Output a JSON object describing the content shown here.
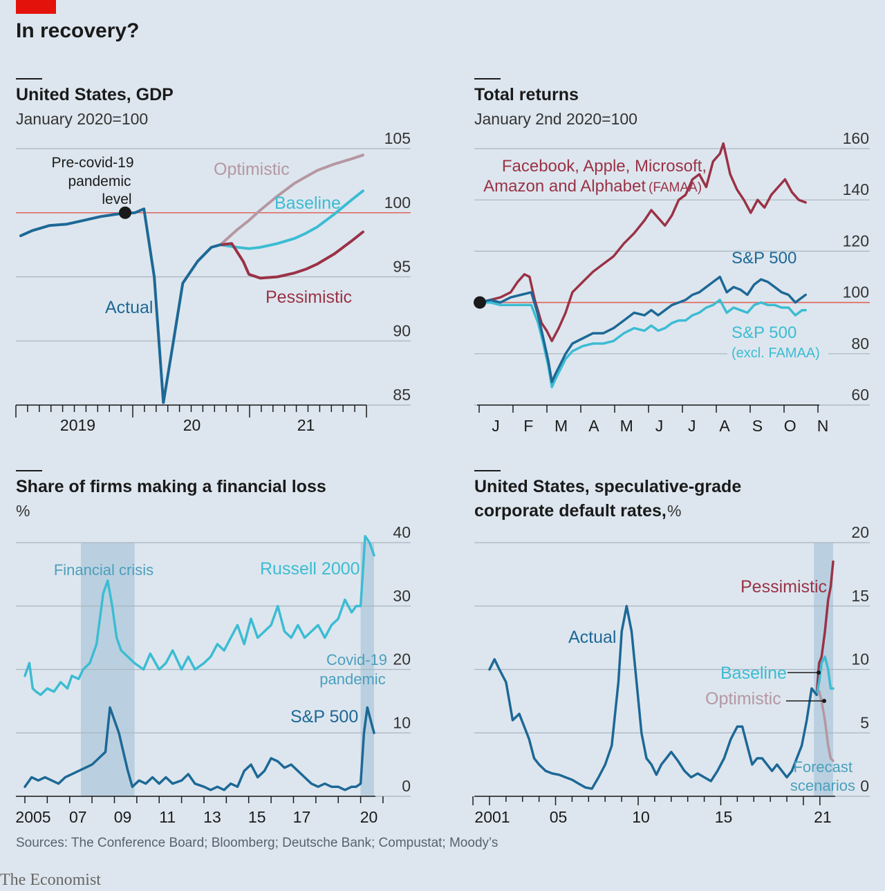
{
  "header": {
    "title": "In recovery?"
  },
  "footer": {
    "sources": "Sources: The Conference Board; Bloomberg; Deutsche Bank; Compustat; Moody’s",
    "brand": "The Economist"
  },
  "colors": {
    "background": "#dde6ee",
    "actual": "#1d6896",
    "optimistic": "#b597a3",
    "baseline": "#3cbcd3",
    "pessimistic": "#9a3246",
    "famaa": "#9a3246",
    "sp500": "#1d6896",
    "sp500_excl": "#3cbcd3",
    "russell": "#3cbcd3",
    "reference_line": "#e0645a",
    "shade": "#b2cbdc",
    "grid": "#a9b4bf",
    "brand_red": "#e3120b"
  },
  "chart_data": [
    {
      "type": "line",
      "title": "United States, GDP",
      "subtitle": "January 2020=100",
      "y_ticks": [
        85,
        90,
        95,
        100,
        105
      ],
      "ylim": [
        85,
        105
      ],
      "x_tick_labels": [
        {
          "label": "2019",
          "x": 2019.5
        },
        {
          "label": "20",
          "x": 2020.5
        },
        {
          "label": "21",
          "x": 2021.5
        }
      ],
      "reference_value": 100,
      "annotations": {
        "pre_covid_line1": "Pre-covid-19",
        "pre_covid_line2": "pandemic",
        "pre_covid_line3": "level"
      },
      "series": [
        {
          "name": "Actual",
          "x": [
            2019.0,
            2019.1,
            2019.25,
            2019.4,
            2019.55,
            2019.7,
            2019.85,
            2020.0,
            2020.08,
            2020.17,
            2020.25,
            2020.33,
            2020.42,
            2020.55,
            2020.67,
            2020.75
          ],
          "y": [
            98.2,
            98.6,
            99.0,
            99.1,
            99.4,
            99.7,
            99.9,
            100.0,
            100.3,
            95.0,
            85.2,
            89.5,
            94.5,
            96.2,
            97.3,
            97.5
          ]
        },
        {
          "name": "Optimistic",
          "x": [
            2020.75,
            2020.9,
            2021.0,
            2021.1,
            2021.25,
            2021.4,
            2021.5,
            2021.6,
            2021.75,
            2021.9,
            2022.0
          ],
          "y": [
            97.5,
            98.7,
            99.4,
            100.2,
            101.3,
            102.3,
            102.8,
            103.3,
            103.8,
            104.2,
            104.5
          ]
        },
        {
          "name": "Baseline",
          "x": [
            2020.75,
            2020.9,
            2021.0,
            2021.1,
            2021.25,
            2021.4,
            2021.5,
            2021.6,
            2021.75,
            2021.9,
            2022.0
          ],
          "y": [
            97.5,
            97.3,
            97.2,
            97.3,
            97.6,
            98.0,
            98.4,
            98.9,
            99.9,
            101.0,
            101.7
          ]
        },
        {
          "name": "Pessimistic",
          "x": [
            2020.75,
            2020.85,
            2020.95,
            2021.0,
            2021.1,
            2021.25,
            2021.4,
            2021.5,
            2021.6,
            2021.75,
            2021.9,
            2022.0
          ],
          "y": [
            97.5,
            97.6,
            96.2,
            95.2,
            94.9,
            95.0,
            95.3,
            95.6,
            96.0,
            96.8,
            97.8,
            98.5
          ]
        }
      ]
    },
    {
      "type": "line",
      "title": "Total returns",
      "subtitle": "January 2nd 2020=100",
      "y_ticks": [
        60,
        80,
        100,
        120,
        140,
        160
      ],
      "ylim": [
        60,
        160
      ],
      "x_tick_labels": [
        "J",
        "F",
        "M",
        "A",
        "M",
        "J",
        "J",
        "A",
        "S",
        "O",
        "N"
      ],
      "reference_value": 100,
      "labels": {
        "famaa_line1": "Facebook, Apple, Microsoft,",
        "famaa_line2": "Amazon and Alphabet",
        "famaa_abbr": "(FAMAA)",
        "sp500": "S&P 500",
        "sp500_excl_line1": "S&P 500",
        "sp500_excl_line2": "(excl. FAMAA)"
      },
      "series": [
        {
          "name": "FAMAA",
          "x": [
            0,
            0.3,
            0.6,
            0.9,
            1.1,
            1.3,
            1.45,
            1.6,
            1.8,
            1.95,
            2.1,
            2.3,
            2.5,
            2.7,
            3.0,
            3.3,
            3.6,
            3.9,
            4.2,
            4.5,
            4.8,
            5.0,
            5.2,
            5.4,
            5.6,
            5.8,
            6.0,
            6.2,
            6.4,
            6.6,
            6.8,
            7.0,
            7.1,
            7.3,
            7.5,
            7.7,
            7.9,
            8.1,
            8.3,
            8.5,
            8.7,
            8.9,
            9.1,
            9.3,
            9.5
          ],
          "y": [
            100,
            101,
            102,
            104,
            108,
            111,
            110,
            101,
            92,
            89,
            85,
            90,
            96,
            104,
            108,
            112,
            115,
            118,
            123,
            127,
            132,
            136,
            133,
            130,
            134,
            140,
            142,
            148,
            150,
            145,
            155,
            158,
            162,
            150,
            144,
            140,
            135,
            140,
            137,
            142,
            145,
            148,
            143,
            140,
            139
          ]
        },
        {
          "name": "S&P 500",
          "x": [
            0,
            0.3,
            0.6,
            0.9,
            1.2,
            1.5,
            1.7,
            1.85,
            2.0,
            2.1,
            2.2,
            2.35,
            2.5,
            2.7,
            3.0,
            3.3,
            3.6,
            3.9,
            4.2,
            4.5,
            4.8,
            5.0,
            5.2,
            5.4,
            5.6,
            5.8,
            6.0,
            6.2,
            6.4,
            6.6,
            6.8,
            7.0,
            7.2,
            7.4,
            7.6,
            7.8,
            8.0,
            8.2,
            8.4,
            8.6,
            8.8,
            9.0,
            9.2,
            9.4,
            9.5
          ],
          "y": [
            100,
            101,
            100,
            102,
            103,
            104,
            95,
            86,
            77,
            69,
            72,
            76,
            80,
            84,
            86,
            88,
            88,
            90,
            93,
            96,
            95,
            97,
            95,
            97,
            99,
            100,
            101,
            103,
            104,
            106,
            108,
            110,
            104,
            106,
            105,
            103,
            107,
            109,
            108,
            106,
            104,
            103,
            100,
            102,
            103
          ]
        },
        {
          "name": "S&P 500 (excl. FAMAA)",
          "x": [
            0,
            0.3,
            0.6,
            0.9,
            1.2,
            1.5,
            1.7,
            1.85,
            2.0,
            2.1,
            2.2,
            2.35,
            2.5,
            2.7,
            3.0,
            3.3,
            3.6,
            3.9,
            4.2,
            4.5,
            4.8,
            5.0,
            5.2,
            5.4,
            5.6,
            5.8,
            6.0,
            6.2,
            6.4,
            6.6,
            6.8,
            7.0,
            7.2,
            7.4,
            7.6,
            7.8,
            8.0,
            8.2,
            8.4,
            8.6,
            8.8,
            9.0,
            9.2,
            9.4,
            9.5
          ],
          "y": [
            100,
            100,
            99,
            99,
            99,
            99,
            92,
            84,
            75,
            67,
            70,
            74,
            78,
            81,
            83,
            84,
            84,
            85,
            88,
            90,
            89,
            91,
            89,
            90,
            92,
            93,
            93,
            95,
            96,
            98,
            99,
            101,
            96,
            98,
            97,
            96,
            99,
            100,
            99,
            99,
            98,
            98,
            95,
            97,
            97
          ]
        }
      ]
    },
    {
      "type": "line",
      "title": "Share of firms making a financial loss",
      "subtitle": "%",
      "y_ticks": [
        0,
        10,
        20,
        30,
        40
      ],
      "ylim": [
        0,
        40
      ],
      "x_tick_labels": [
        {
          "label": "2005",
          "x": 2005
        },
        {
          "label": "07",
          "x": 2007
        },
        {
          "label": "09",
          "x": 2009
        },
        {
          "label": "11",
          "x": 2011
        },
        {
          "label": "13",
          "x": 2013
        },
        {
          "label": "15",
          "x": 2015
        },
        {
          "label": "17",
          "x": 2017
        },
        {
          "label": "20",
          "x": 2020
        }
      ],
      "shaded_periods": [
        {
          "label": "Financial crisis",
          "from": 2007.5,
          "to": 2009.9
        },
        {
          "label_line1": "Covid-19",
          "label_line2": "pandemic",
          "from": 2020.0,
          "to": 2020.6
        }
      ],
      "series": [
        {
          "name": "Russell 2000",
          "x": [
            2005.0,
            2005.2,
            2005.35,
            2005.5,
            2005.7,
            2006.0,
            2006.3,
            2006.6,
            2006.9,
            2007.1,
            2007.4,
            2007.6,
            2007.9,
            2008.2,
            2008.5,
            2008.7,
            2008.9,
            2009.1,
            2009.3,
            2009.6,
            2009.9,
            2010.3,
            2010.6,
            2011.0,
            2011.3,
            2011.6,
            2012.0,
            2012.3,
            2012.6,
            2013.0,
            2013.3,
            2013.6,
            2013.9,
            2014.2,
            2014.5,
            2014.8,
            2015.1,
            2015.4,
            2015.7,
            2016.0,
            2016.3,
            2016.6,
            2016.9,
            2017.2,
            2017.5,
            2017.8,
            2018.1,
            2018.4,
            2018.7,
            2019.0,
            2019.3,
            2019.6,
            2019.8,
            2020.0,
            2020.2,
            2020.4,
            2020.5,
            2020.6
          ],
          "y": [
            19,
            21,
            17,
            16.5,
            16,
            17,
            16.5,
            18,
            17,
            19,
            18.5,
            20,
            21,
            24,
            32,
            34,
            30,
            25,
            23,
            22,
            21,
            20,
            22.5,
            20,
            21,
            23,
            20,
            22,
            20,
            21,
            22,
            24,
            23,
            25,
            27,
            24,
            28,
            25,
            26,
            27,
            30,
            26,
            25,
            27,
            25,
            26,
            27,
            25,
            27,
            28,
            31,
            29,
            30,
            30,
            41,
            40,
            39,
            38
          ]
        },
        {
          "name": "S&P 500",
          "x": [
            2005.0,
            2005.3,
            2005.6,
            2005.9,
            2006.2,
            2006.5,
            2006.8,
            2007.1,
            2007.4,
            2007.7,
            2008.0,
            2008.3,
            2008.6,
            2008.8,
            2009.0,
            2009.2,
            2009.4,
            2009.6,
            2009.8,
            2010.1,
            2010.4,
            2010.7,
            2011.0,
            2011.3,
            2011.6,
            2012.0,
            2012.3,
            2012.6,
            2013.0,
            2013.3,
            2013.6,
            2013.9,
            2014.2,
            2014.5,
            2014.8,
            2015.1,
            2015.4,
            2015.7,
            2016.0,
            2016.3,
            2016.6,
            2016.9,
            2017.2,
            2017.5,
            2017.8,
            2018.1,
            2018.4,
            2018.7,
            2019.0,
            2019.3,
            2019.6,
            2019.8,
            2020.0,
            2020.15,
            2020.3,
            2020.45,
            2020.6
          ],
          "y": [
            1.5,
            3,
            2.5,
            3,
            2.5,
            2,
            3,
            3.5,
            4,
            4.5,
            5,
            6,
            7,
            14,
            12,
            10,
            7,
            4,
            1.5,
            2.5,
            2,
            3,
            2,
            3,
            2,
            2.5,
            3.5,
            2,
            1.5,
            1,
            1.5,
            1,
            2,
            1.5,
            4,
            5,
            3,
            4,
            6,
            5.5,
            4.5,
            5,
            4,
            3,
            2,
            1.5,
            2,
            1.5,
            1.5,
            1,
            1.5,
            1.5,
            2,
            10,
            14,
            12,
            10
          ]
        }
      ]
    },
    {
      "type": "line",
      "title_line1": "United States, speculative-grade",
      "title_line2": "corporate default rates,",
      "unit": "%",
      "y_ticks": [
        0,
        5,
        10,
        15,
        20
      ],
      "ylim": [
        0,
        20
      ],
      "x_tick_labels": [
        {
          "label": "2001",
          "x": 2001
        },
        {
          "label": "05",
          "x": 2005
        },
        {
          "label": "10",
          "x": 2010
        },
        {
          "label": "15",
          "x": 2015
        },
        {
          "label": "21",
          "x": 2021
        }
      ],
      "shaded_periods": [
        {
          "label_line1": "Forecast",
          "label_line2": "scenarios",
          "from": 2020.8,
          "to": 2021.8
        }
      ],
      "series": [
        {
          "name": "Actual",
          "x": [
            2001.0,
            2001.3,
            2001.6,
            2002.0,
            2002.4,
            2002.8,
            2003.1,
            2003.4,
            2003.7,
            2004.0,
            2004.4,
            2004.8,
            2005.2,
            2005.6,
            2006.0,
            2006.4,
            2006.8,
            2007.2,
            2007.6,
            2008.0,
            2008.4,
            2008.8,
            2009.0,
            2009.3,
            2009.6,
            2009.9,
            2010.2,
            2010.5,
            2010.8,
            2011.1,
            2011.4,
            2011.7,
            2012.0,
            2012.4,
            2012.8,
            2013.2,
            2013.6,
            2014.0,
            2014.4,
            2014.8,
            2015.2,
            2015.6,
            2016.0,
            2016.3,
            2016.6,
            2016.9,
            2017.2,
            2017.5,
            2017.8,
            2018.1,
            2018.4,
            2018.7,
            2019.0,
            2019.3,
            2019.6,
            2019.9,
            2020.2,
            2020.5,
            2020.8
          ],
          "y": [
            10,
            10.8,
            10,
            9,
            6,
            6.5,
            5.5,
            4.5,
            3,
            2.5,
            2,
            1.8,
            1.7,
            1.5,
            1.3,
            1,
            0.7,
            0.6,
            1.5,
            2.5,
            4,
            9,
            13,
            15,
            13,
            9,
            5,
            3,
            2.5,
            1.7,
            2.5,
            3,
            3.5,
            2.8,
            2,
            1.5,
            1.8,
            1.5,
            1.2,
            2,
            3,
            4.5,
            5.5,
            5.5,
            4,
            2.5,
            3,
            3,
            2.5,
            2,
            2.5,
            2,
            1.5,
            2,
            3,
            4,
            6,
            8.5,
            8
          ]
        },
        {
          "name": "Pessimistic",
          "x": [
            2020.8,
            2020.95,
            2021.1,
            2021.3,
            2021.5,
            2021.65,
            2021.8
          ],
          "y": [
            8,
            10.5,
            11,
            13,
            15.5,
            16.5,
            18.5
          ]
        },
        {
          "name": "Baseline",
          "x": [
            2020.8,
            2020.95,
            2021.1,
            2021.3,
            2021.5,
            2021.65,
            2021.8
          ],
          "y": [
            8,
            9,
            10.5,
            11,
            10,
            8.5,
            8.5
          ]
        },
        {
          "name": "Optimistic",
          "x": [
            2020.8,
            2020.95,
            2021.1,
            2021.3,
            2021.5,
            2021.65,
            2021.8
          ],
          "y": [
            8,
            8.3,
            7.5,
            6,
            4,
            3,
            2.8
          ]
        }
      ]
    }
  ]
}
